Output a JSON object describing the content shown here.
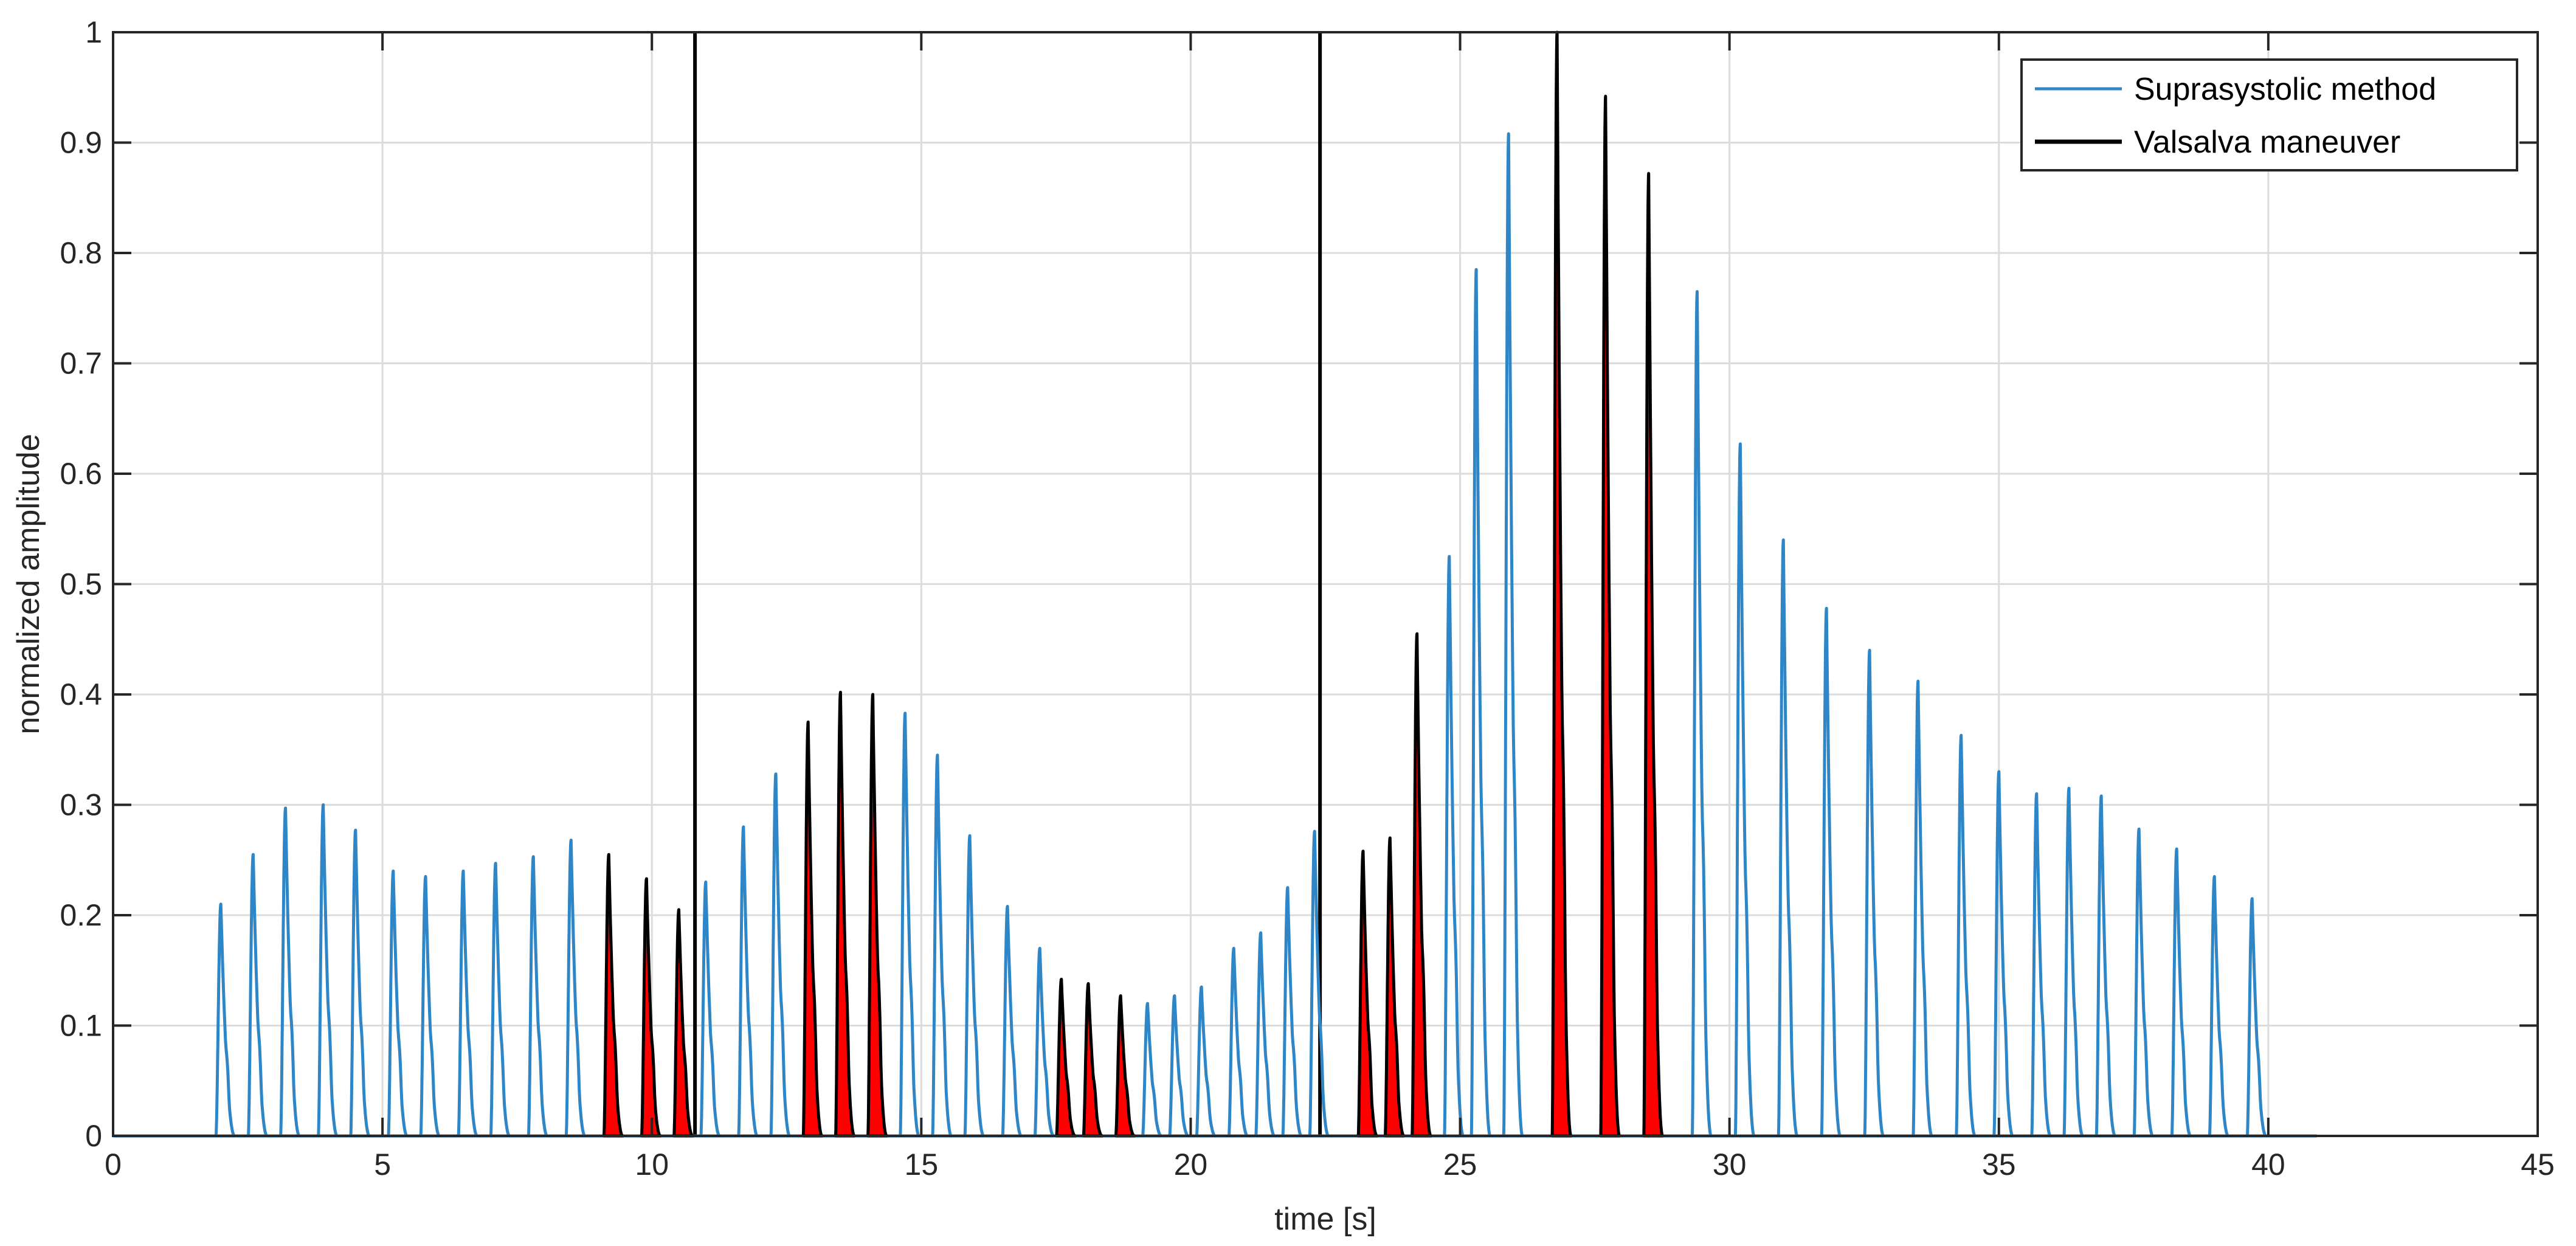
{
  "chart_data": {
    "type": "line",
    "title": "",
    "xlabel": "time [s]",
    "ylabel": "normalized amplitude",
    "xlim": [
      0,
      45
    ],
    "ylim": [
      0,
      1
    ],
    "xticks": [
      0,
      5,
      10,
      15,
      20,
      25,
      30,
      35,
      40,
      45
    ],
    "yticks": [
      0,
      0.1,
      0.2,
      0.3,
      0.4,
      0.5,
      0.6,
      0.7,
      0.8,
      0.9,
      1
    ],
    "grid": true,
    "legend": {
      "position": "top-right",
      "entries": [
        {
          "name": "Suprasystolic method",
          "color": "#2f86c6"
        },
        {
          "name": "Valsalva maneuver",
          "color": "#000000"
        }
      ]
    },
    "vertical_markers": [
      10.8,
      22.4
    ],
    "series": [
      {
        "name": "Suprasystolic method",
        "color": "#2f86c6",
        "pulse_times": [
          2.0,
          2.6,
          3.2,
          3.9,
          4.5,
          5.2,
          5.8,
          6.5,
          7.1,
          7.8,
          8.5,
          11.0,
          11.7,
          12.3,
          14.7,
          15.3,
          15.9,
          16.6,
          17.2,
          19.2,
          19.7,
          20.2,
          20.8,
          21.3,
          21.8,
          22.3,
          24.8,
          25.3,
          25.9,
          29.4,
          30.2,
          31.0,
          31.8,
          32.6,
          33.5,
          34.3,
          35.0,
          35.7,
          36.3,
          36.9,
          37.6,
          38.3,
          39.0,
          39.7
        ],
        "pulse_amplitudes": [
          0.21,
          0.255,
          0.297,
          0.3,
          0.277,
          0.24,
          0.235,
          0.24,
          0.247,
          0.253,
          0.268,
          0.23,
          0.28,
          0.328,
          0.383,
          0.345,
          0.272,
          0.208,
          0.17,
          0.12,
          0.127,
          0.135,
          0.17,
          0.184,
          0.225,
          0.276,
          0.525,
          0.785,
          0.908,
          0.765,
          0.627,
          0.54,
          0.478,
          0.44,
          0.412,
          0.363,
          0.33,
          0.31,
          0.315,
          0.308,
          0.278,
          0.26,
          0.235,
          0.215
        ]
      },
      {
        "name": "Valsalva maneuver",
        "color": "#000000",
        "fill_color": "#ff0000",
        "pulse_times": [
          9.2,
          9.9,
          10.5,
          12.9,
          13.5,
          14.1,
          17.6,
          18.1,
          18.7,
          23.2,
          23.7,
          24.2,
          26.8,
          27.7,
          28.5
        ],
        "pulse_amplitudes": [
          0.255,
          0.233,
          0.205,
          0.375,
          0.402,
          0.4,
          0.142,
          0.138,
          0.127,
          0.258,
          0.27,
          0.455,
          1.0,
          0.942,
          0.872
        ]
      }
    ]
  }
}
